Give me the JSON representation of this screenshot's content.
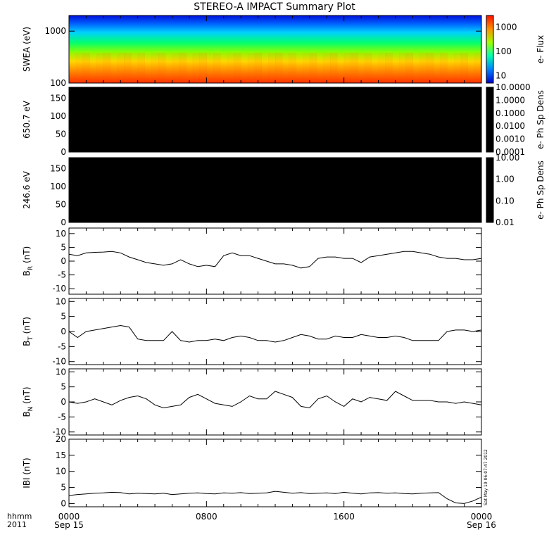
{
  "title": "STEREO-A IMPACT Summary Plot",
  "bottom_left": {
    "line1": "hhmm",
    "line2": "2011"
  },
  "timestamp": "Sat May 19 06:07:47 2012",
  "chart_data": [
    {
      "type": "heatmap",
      "ylabel": "SWEA (eV)",
      "y_scale": "log",
      "ylim": [
        100,
        2000
      ],
      "y_ticks": [
        "100",
        "1000"
      ],
      "colorbar": {
        "label": "e- Flux",
        "scale": "log",
        "range": [
          5,
          3000
        ],
        "ticks": [
          "10",
          "100",
          "1000"
        ]
      },
      "colormap": [
        "#0000d0",
        "#00b0ff",
        "#00ff60",
        "#f0ff00",
        "#ff8000",
        "#ff2000"
      ]
    },
    {
      "type": "heatmap",
      "ylabel": "650.7 eV",
      "ylim": [
        0,
        180
      ],
      "y_ticks": [
        "0",
        "50",
        "100",
        "150"
      ],
      "fill": "#000000",
      "colorbar": {
        "label": "e- Ph Sp Dens",
        "scale": "log",
        "range": [
          0.0001,
          10
        ],
        "ticks": [
          "10.0000",
          "1.0000",
          "0.1000",
          "0.0100",
          "0.0010",
          "0.0001"
        ]
      }
    },
    {
      "type": "heatmap",
      "ylabel": "246.6 eV",
      "ylim": [
        0,
        180
      ],
      "y_ticks": [
        "0",
        "50",
        "100",
        "150"
      ],
      "fill": "#000000",
      "colorbar": {
        "label": "e- Ph Sp Dens",
        "scale": "log",
        "range": [
          0.01,
          10
        ],
        "ticks": [
          "10.00",
          "1.00",
          "0.10",
          "0.01"
        ]
      }
    },
    {
      "type": "line",
      "ylabel": "B_R (nT)",
      "ylim": [
        -12,
        12
      ],
      "y_ticks": [
        "-10",
        "-5",
        "0",
        "5",
        "10"
      ],
      "x": [
        0,
        0.5,
        1,
        1.5,
        2,
        2.5,
        3,
        3.5,
        4,
        4.5,
        5,
        5.5,
        6,
        6.5,
        7,
        7.5,
        8,
        8.5,
        9,
        9.5,
        10,
        10.5,
        11,
        11.5,
        12,
        12.5,
        13,
        13.5,
        14,
        14.5,
        15,
        15.5,
        16,
        16.5,
        17,
        17.5,
        18,
        18.5,
        19,
        19.5,
        20,
        20.5,
        21,
        21.5,
        22,
        22.5,
        23,
        23.5,
        24
      ],
      "y": [
        2.5,
        2.0,
        3.0,
        3.2,
        3.3,
        3.5,
        3.0,
        1.5,
        0.5,
        -0.5,
        -1,
        -1.5,
        -1,
        0.5,
        -1,
        -2,
        -1.5,
        -2,
        2,
        3,
        2,
        2,
        1,
        0,
        -1,
        -1,
        -1.5,
        -2.5,
        -2,
        1,
        1.5,
        1.5,
        1,
        1,
        -0.5,
        1.5,
        2,
        2.5,
        3.0,
        3.5,
        3.5,
        3.0,
        2.5,
        1.5,
        1,
        1.0,
        0.5,
        0.5,
        1.0
      ]
    },
    {
      "type": "line",
      "ylabel": "B_T (nT)",
      "ylim": [
        -11,
        11
      ],
      "y_ticks": [
        "-10",
        "-5",
        "0",
        "5",
        "10"
      ],
      "x": [
        0,
        0.5,
        1,
        1.5,
        2,
        2.5,
        3,
        3.5,
        4,
        4.5,
        5,
        5.5,
        6,
        6.5,
        7,
        7.5,
        8,
        8.5,
        9,
        9.5,
        10,
        10.5,
        11,
        11.5,
        12,
        12.5,
        13,
        13.5,
        14,
        14.5,
        15,
        15.5,
        16,
        16.5,
        17,
        17.5,
        18,
        18.5,
        19,
        19.5,
        20,
        20.5,
        21,
        21.5,
        22,
        22.5,
        23,
        23.5,
        24
      ],
      "y": [
        0,
        -2,
        0,
        0.5,
        1,
        1.5,
        2,
        1.5,
        -2.5,
        -3,
        -3,
        -3,
        0,
        -3,
        -3.5,
        -3,
        -3,
        -2.5,
        -3,
        -2,
        -1.5,
        -2,
        -3,
        -3,
        -3.5,
        -3,
        -2,
        -1,
        -1.5,
        -2.5,
        -2.5,
        -1.5,
        -2,
        -2,
        -1,
        -1.5,
        -2,
        -2,
        -1.5,
        -2,
        -3,
        -3,
        -3,
        -3,
        0,
        0.5,
        0.5,
        0,
        0.5
      ]
    },
    {
      "type": "line",
      "ylabel": "B_N (nT)",
      "ylim": [
        -11,
        11
      ],
      "y_ticks": [
        "-10",
        "-5",
        "0",
        "5",
        "10"
      ],
      "x": [
        0,
        0.5,
        1,
        1.5,
        2,
        2.5,
        3,
        3.5,
        4,
        4.5,
        5,
        5.5,
        6,
        6.5,
        7,
        7.5,
        8,
        8.5,
        9,
        9.5,
        10,
        10.5,
        11,
        11.5,
        12,
        12.5,
        13,
        13.5,
        14,
        14.5,
        15,
        15.5,
        16,
        16.5,
        17,
        17.5,
        18,
        18.5,
        19,
        19.5,
        20,
        20.5,
        21,
        21.5,
        22,
        22.5,
        23,
        23.5,
        24
      ],
      "y": [
        0,
        -0.5,
        0,
        1,
        0,
        -1,
        0.5,
        1.5,
        2,
        1,
        -1,
        -2,
        -1.5,
        -1,
        1.5,
        2.5,
        1,
        -0.5,
        -1,
        -1.5,
        0,
        2,
        1,
        1,
        3.5,
        2.5,
        1.5,
        -1.5,
        -2,
        1,
        2,
        0,
        -1.5,
        1,
        0,
        1.5,
        1,
        0.5,
        3.5,
        2,
        0.5,
        0.5,
        0.5,
        0,
        0,
        -0.5,
        0,
        -0.5,
        -1
      ]
    },
    {
      "type": "line",
      "ylabel": "IBI (nT)",
      "ylim": [
        -1,
        20
      ],
      "y_ticks": [
        "0",
        "5",
        "10",
        "15",
        "20"
      ],
      "x": [
        0,
        0.5,
        1,
        1.5,
        2,
        2.5,
        3,
        3.5,
        4,
        4.5,
        5,
        5.5,
        6,
        6.5,
        7,
        7.5,
        8,
        8.5,
        9,
        9.5,
        10,
        10.5,
        11,
        11.5,
        12,
        12.5,
        13,
        13.5,
        14,
        14.5,
        15,
        15.5,
        16,
        16.5,
        17,
        17.5,
        18,
        18.5,
        19,
        19.5,
        20,
        20.5,
        21,
        21.5,
        22,
        22.5,
        23,
        23.5,
        24
      ],
      "y": [
        2.5,
        2.8,
        3,
        3.2,
        3.3,
        3.5,
        3.4,
        3,
        3.2,
        3.1,
        3,
        3.2,
        2.8,
        3,
        3.2,
        3.3,
        3.1,
        3,
        3.3,
        3.2,
        3.4,
        3.1,
        3.2,
        3.3,
        3.8,
        3.5,
        3.2,
        3.4,
        3.1,
        3.2,
        3.3,
        3.1,
        3.5,
        3.2,
        3,
        3.3,
        3.4,
        3.2,
        3.3,
        3.1,
        3,
        3.2,
        3.3,
        3.4,
        1.5,
        0.2,
        0,
        0.8,
        2
      ]
    }
  ],
  "x_axis": {
    "ticks": [
      "0000",
      "0800",
      "1600",
      "0000"
    ],
    "sublabels": [
      "Sep 15",
      "",
      "",
      "Sep 16"
    ]
  }
}
